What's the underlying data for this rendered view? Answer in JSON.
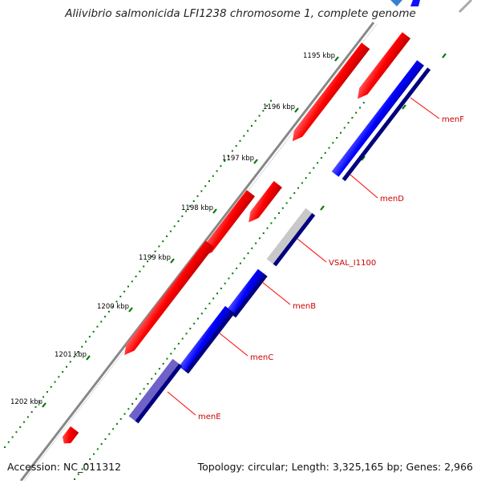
{
  "title": "Aliivibrio salmonicida LFI1238 chromosome 1, complete genome",
  "footer": {
    "accession": "Accession: NC_011312",
    "stats": "Topology: circular; Length: 3,325,165 bp; Genes: 2,966"
  },
  "ticks": [
    "1195 kbp",
    "1196 kbp",
    "1197 kbp",
    "1198 kbp",
    "1199 kbp",
    "1200 kbp",
    "1201 kbp",
    "1202 kbp"
  ],
  "genes": [
    "menF",
    "menD",
    "VSAL_I1100",
    "menB",
    "menC",
    "menE"
  ],
  "colors": {
    "forward_cds": "#ff0000",
    "reverse_cds": "#0000ff",
    "gene_bar": "#000080",
    "pseudo": "#c8c8c8",
    "tick": "#007700",
    "backbone": "#888888",
    "label": "#cc0000",
    "leader": "#ff0000"
  }
}
